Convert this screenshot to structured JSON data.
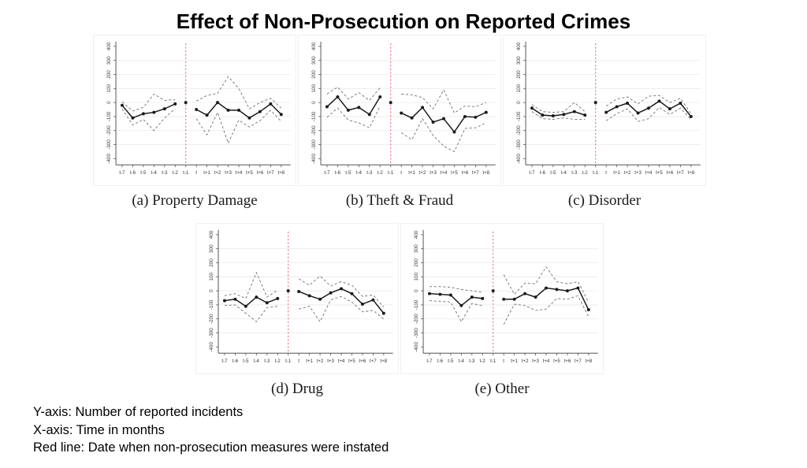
{
  "title": "Effect of Non-Prosecution on Reported Crimes",
  "footnotes": {
    "y_axis": "Y-axis: Number of reported incidents",
    "x_axis": "X-axis: Time in months",
    "red_line": "Red line: Date when non-prosecution measures were instated"
  },
  "colors": {
    "estimate_line": "#1a1a1a",
    "ci_line": "#707070",
    "red_event_line": "#e8707e",
    "grid": "#eaeaea",
    "axis": "#555555",
    "tick_label": "#333333"
  },
  "chart_data": {
    "type": "line",
    "title": "Effect of Non-Prosecution on Reported Crimes",
    "xlabel": "Time in months",
    "ylabel": "Number of reported incidents",
    "categories": [
      "t-7",
      "t-6",
      "t-5",
      "t-4",
      "t-3",
      "t-2",
      "t-1",
      "t",
      "t+1",
      "t+2",
      "t+3",
      "t+4",
      "t+5",
      "t+6",
      "t+7",
      "t+8"
    ],
    "ylim": [
      -400,
      400
    ],
    "yticks": [
      400,
      300,
      200,
      100,
      0,
      -100,
      -200,
      -300,
      -400
    ],
    "reference_index": 6,
    "red_line_category": "t-1",
    "grid": true,
    "legend_position": "none",
    "series_style": {
      "estimate": "solid line with point markers",
      "upper": "dashed 95% CI upper bound",
      "lower": "dashed 95% CI lower bound"
    },
    "panels": [
      {
        "caption": "(a) Property Damage",
        "estimate": [
          -20,
          -110,
          -80,
          -70,
          -45,
          -10,
          0,
          -50,
          -90,
          0,
          -55,
          -55,
          -110,
          -65,
          -10,
          -85
        ],
        "upper": [
          5,
          -60,
          -35,
          60,
          15,
          20,
          null,
          10,
          50,
          65,
          185,
          100,
          -45,
          0,
          30,
          -40
        ],
        "lower": [
          -45,
          -160,
          -120,
          -200,
          -110,
          -45,
          null,
          -115,
          -230,
          -70,
          -290,
          -125,
          -175,
          -130,
          -55,
          -135
        ]
      },
      {
        "caption": "(b) Theft & Fraud",
        "estimate": [
          -30,
          40,
          -55,
          -35,
          -85,
          40,
          0,
          -75,
          -110,
          -35,
          -140,
          -115,
          -210,
          -100,
          -105,
          -70
        ],
        "upper": [
          60,
          110,
          25,
          70,
          15,
          105,
          null,
          60,
          55,
          35,
          -45,
          90,
          -75,
          -25,
          -30,
          0
        ],
        "lower": [
          -105,
          -40,
          -125,
          -145,
          -180,
          -25,
          null,
          -215,
          -265,
          -115,
          -235,
          -310,
          -350,
          -185,
          -180,
          -145
        ]
      },
      {
        "caption": "(c) Disorder",
        "estimate": [
          -40,
          -90,
          -95,
          -85,
          -65,
          -90,
          0,
          -70,
          -30,
          -5,
          -75,
          -40,
          10,
          -45,
          -5,
          -100
        ],
        "upper": [
          -15,
          -65,
          -70,
          -65,
          0,
          -65,
          null,
          -25,
          25,
          40,
          -10,
          45,
          50,
          0,
          30,
          -80
        ],
        "lower": [
          -65,
          -115,
          -120,
          -110,
          -120,
          -120,
          null,
          -130,
          -80,
          -45,
          -135,
          -115,
          -35,
          -85,
          -40,
          -120
        ]
      },
      {
        "caption": "(d) Drug",
        "estimate": [
          -70,
          -60,
          -110,
          -45,
          -85,
          -55,
          0,
          -5,
          -35,
          -60,
          -15,
          15,
          -20,
          -95,
          -65,
          -160
        ],
        "upper": [
          -35,
          -20,
          -55,
          130,
          -45,
          5,
          null,
          85,
          40,
          105,
          35,
          65,
          40,
          -40,
          -30,
          -115
        ],
        "lower": [
          -105,
          -100,
          -160,
          -220,
          -120,
          -110,
          null,
          -130,
          -110,
          -220,
          -65,
          -40,
          -80,
          -150,
          -140,
          -200
        ]
      },
      {
        "caption": "(e) Other",
        "estimate": [
          -20,
          -25,
          -30,
          -105,
          -45,
          -55,
          0,
          -60,
          -60,
          -20,
          -45,
          20,
          10,
          0,
          20,
          -135
        ],
        "upper": [
          30,
          30,
          25,
          10,
          0,
          -10,
          null,
          115,
          -25,
          55,
          50,
          170,
          65,
          50,
          65,
          -80
        ],
        "lower": [
          -70,
          -75,
          -80,
          -220,
          -90,
          -105,
          null,
          -240,
          -95,
          -105,
          -140,
          -130,
          -55,
          -60,
          -35,
          -185
        ]
      }
    ]
  }
}
